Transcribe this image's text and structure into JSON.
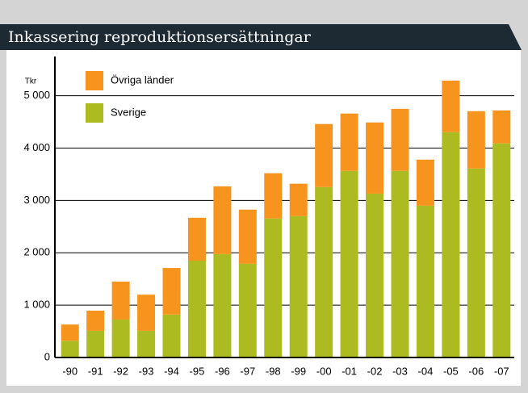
{
  "chart_data": {
    "type": "bar",
    "stacked": true,
    "title": "Inkassering reproduktionsersättningar",
    "ylabel": "Tkr",
    "categories": [
      "-90",
      "-91",
      "-92",
      "-93",
      "-94",
      "-95",
      "-96",
      "-97",
      "-98",
      "-99",
      "-00",
      "-01",
      "-02",
      "-03",
      "-04",
      "-05",
      "-06",
      "-07"
    ],
    "series": [
      {
        "name": "Övriga länder",
        "color": "#f7941d",
        "values": [
          310,
          385,
          725,
          690,
          890,
          820,
          1295,
          1035,
          865,
          620,
          1205,
          1095,
          1360,
          1185,
          880,
          985,
          1095,
          630
        ]
      },
      {
        "name": "Sverige",
        "color": "#acbb1f",
        "values": [
          320,
          510,
          725,
          510,
          820,
          1850,
          1975,
          1790,
          2655,
          2700,
          3255,
          3565,
          3130,
          3565,
          2900,
          4305,
          3610,
          4090
        ]
      }
    ],
    "ylim": [
      0,
      5750
    ],
    "yticks": [
      0,
      {
        "value": 1000,
        "label": "1 000"
      },
      {
        "value": 2000,
        "label": "2 000"
      },
      {
        "value": 3000,
        "label": "3 000"
      },
      {
        "value": 4000,
        "label": "4 000"
      },
      {
        "value": 5000,
        "label": "5 000"
      }
    ],
    "grid": true
  }
}
